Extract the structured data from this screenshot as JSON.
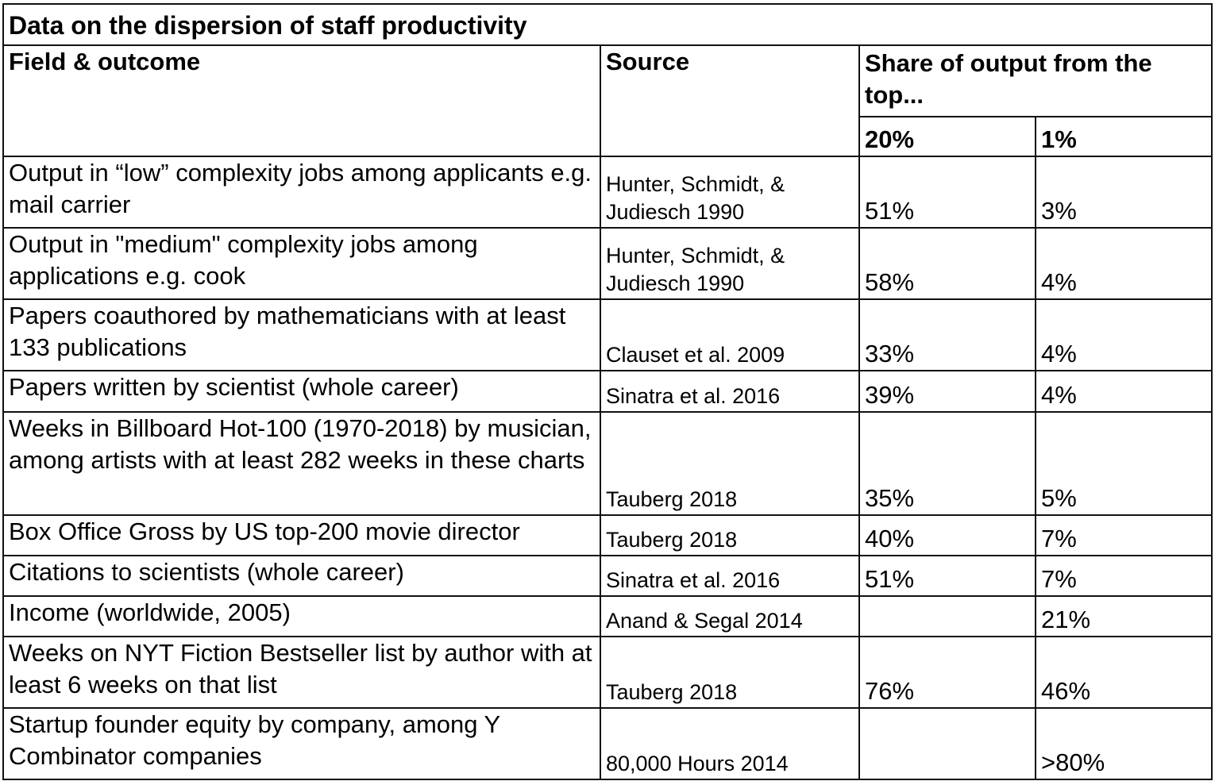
{
  "table": {
    "title": "Data on the dispersion of staff productivity",
    "headers": {
      "field": "Field & outcome",
      "source": "Source",
      "share": "Share of output from the top...",
      "top20": "20%",
      "top1": "1%"
    },
    "rows": [
      {
        "field": "Output in “low” complexity jobs among applicants e.g. mail carrier",
        "source": "Hunter, Schmidt, & Judiesch 1990",
        "top20": "51%",
        "top1": "3%"
      },
      {
        "field": "Output in \"medium\" complexity jobs among applications e.g. cook",
        "source": "Hunter, Schmidt, & Judiesch 1990",
        "top20": "58%",
        "top1": "4%"
      },
      {
        "field": "Papers coauthored by mathematicians with at least 133 publications",
        "source": "Clauset et al. 2009",
        "top20": "33%",
        "top1": "4%"
      },
      {
        "field": "Papers written by scientist (whole career)",
        "source": "Sinatra et al. 2016",
        "top20": "39%",
        "top1": "4%"
      },
      {
        "field": "Weeks in Billboard Hot-100 (1970-2018) by musician, among artists with at least 282 weeks in these charts",
        "source": "Tauberg 2018",
        "top20": "35%",
        "top1": "5%"
      },
      {
        "field": "Box Office Gross by US top-200 movie director",
        "source": "Tauberg 2018",
        "top20": "40%",
        "top1": "7%"
      },
      {
        "field": "Citations to scientists (whole career)",
        "source": "Sinatra et al. 2016",
        "top20": "51%",
        "top1": "7%"
      },
      {
        "field": "Income (worldwide, 2005)",
        "source": "Anand & Segal 2014",
        "top20": "",
        "top1": "21%"
      },
      {
        "field": "Weeks on NYT Fiction Bestseller list by author with at least 6 weeks on that list",
        "source": "Tauberg 2018",
        "top20": "76%",
        "top1": "46%"
      },
      {
        "field": "Startup founder equity by company, among Y Combinator companies",
        "source": "80,000 Hours 2014",
        "top20": "",
        "top1": ">80%"
      }
    ]
  }
}
